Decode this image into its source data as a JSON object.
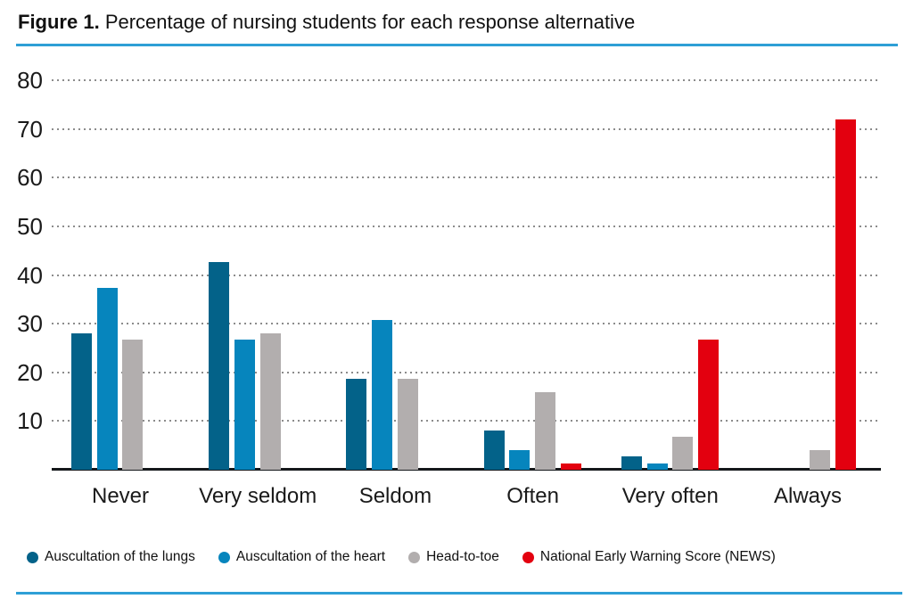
{
  "figure": {
    "label": "Figure 1.",
    "title": "Percentage of nursing students for each response alternative"
  },
  "accent_rule_color": "#2e9fd6",
  "chart_data": {
    "type": "bar",
    "title": "Percentage of nursing students for each response alternative",
    "categories": [
      "Never",
      "Very seldom",
      "Seldom",
      "Often",
      "Very often",
      "Always"
    ],
    "series": [
      {
        "name": "Auscultation of the lungs",
        "color": "#036289",
        "values": [
          28.0,
          42.7,
          18.7,
          8.0,
          2.7,
          0
        ]
      },
      {
        "name": "Auscultation of the heart",
        "color": "#0685bd",
        "values": [
          37.3,
          26.7,
          30.7,
          4.0,
          1.3,
          0
        ]
      },
      {
        "name": "Head-to-toe",
        "color": "#b2aeae",
        "values": [
          26.7,
          28.0,
          18.7,
          16.0,
          6.7,
          4.0
        ]
      },
      {
        "name": "National Early Warning Score (NEWS)",
        "color": "#e3000f",
        "values": [
          0,
          0,
          0,
          1.3,
          26.7,
          72.0
        ]
      }
    ],
    "ylim": [
      0,
      80
    ],
    "yticks": [
      10,
      20,
      30,
      40,
      50,
      60,
      70,
      80
    ],
    "grid": "dotted-horizontal",
    "legend_position": "bottom",
    "axis_color": "#15181b",
    "gridline_color": "#8c8c8c"
  }
}
